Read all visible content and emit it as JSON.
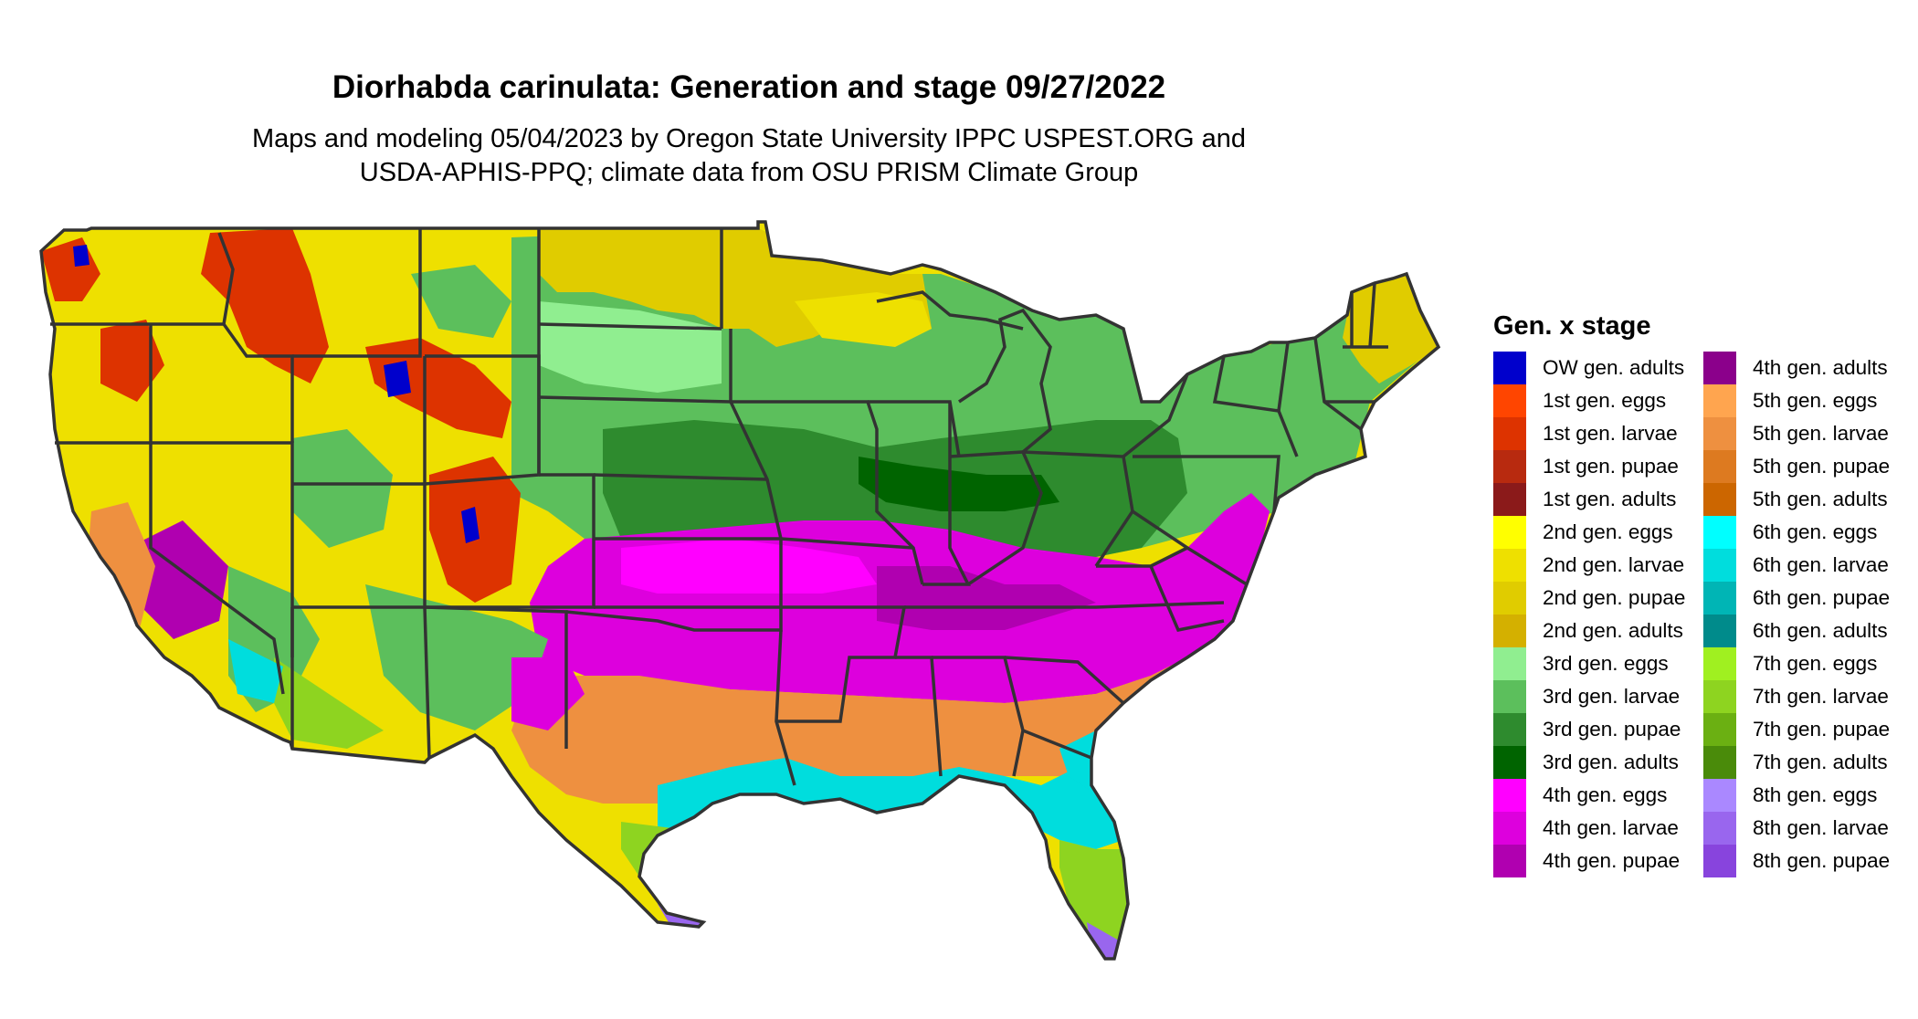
{
  "title": "Diorhabda carinulata: Generation and stage 09/27/2022",
  "subtitle_line1": "Maps and modeling 05/04/2023 by Oregon State University IPPC USPEST.ORG and",
  "subtitle_line2": "USDA-APHIS-PPQ; climate data from OSU PRISM Climate Group",
  "legend": {
    "title": "Gen. x stage",
    "column1": [
      {
        "label": "OW gen. adults",
        "color": "#0000CC"
      },
      {
        "label": "1st gen. eggs",
        "color": "#FF4500"
      },
      {
        "label": "1st gen. larvae",
        "color": "#DD3300"
      },
      {
        "label": "1st gen. pupae",
        "color": "#B82A0F"
      },
      {
        "label": "1st gen. adults",
        "color": "#8B1A1A"
      },
      {
        "label": "2nd gen. eggs",
        "color": "#FFFF00"
      },
      {
        "label": "2nd gen. larvae",
        "color": "#EEE000"
      },
      {
        "label": "2nd gen. pupae",
        "color": "#E0CC00"
      },
      {
        "label": "2nd gen. adults",
        "color": "#D4B000"
      },
      {
        "label": "3rd gen. eggs",
        "color": "#90EE90"
      },
      {
        "label": "3rd gen. larvae",
        "color": "#5CBF5C"
      },
      {
        "label": "3rd gen. pupae",
        "color": "#2E8B2E"
      },
      {
        "label": "3rd gen. adults",
        "color": "#006400"
      },
      {
        "label": "4th gen. eggs",
        "color": "#FF00FF"
      },
      {
        "label": "4th gen. larvae",
        "color": "#DD00DD"
      },
      {
        "label": "4th gen. pupae",
        "color": "#B000B0"
      }
    ],
    "column2": [
      {
        "label": "4th gen. adults",
        "color": "#8B008B"
      },
      {
        "label": "5th gen. eggs",
        "color": "#FFA54F"
      },
      {
        "label": "5th gen. larvae",
        "color": "#EE9040"
      },
      {
        "label": "5th gen. pupae",
        "color": "#DD7A20"
      },
      {
        "label": "5th gen. adults",
        "color": "#CC6600"
      },
      {
        "label": "6th gen. eggs",
        "color": "#00FFFF"
      },
      {
        "label": "6th gen. larvae",
        "color": "#00DDDD"
      },
      {
        "label": "6th gen. pupae",
        "color": "#00B5B5"
      },
      {
        "label": "6th gen. adults",
        "color": "#008B8B"
      },
      {
        "label": "7th gen. eggs",
        "color": "#A0F020"
      },
      {
        "label": "7th gen. larvae",
        "color": "#8ED420"
      },
      {
        "label": "7th gen. pupae",
        "color": "#6BB012"
      },
      {
        "label": "7th gen. adults",
        "color": "#4A8B0A"
      },
      {
        "label": "8th gen. eggs",
        "color": "#AA88FF"
      },
      {
        "label": "8th gen. larvae",
        "color": "#9966EE"
      },
      {
        "label": "8th gen. pupae",
        "color": "#8844DD"
      }
    ]
  }
}
